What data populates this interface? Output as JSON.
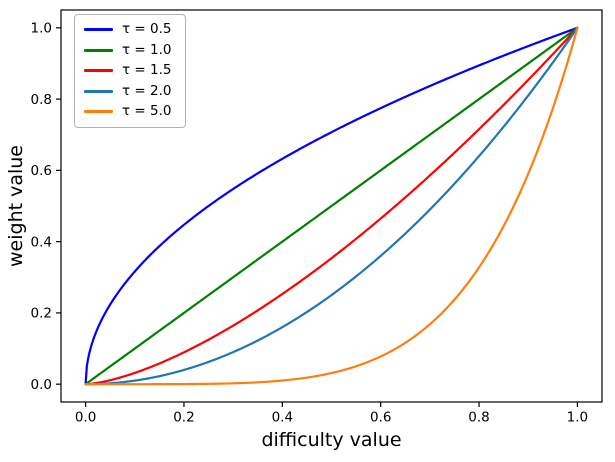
{
  "figure": {
    "background": "#ffffff",
    "axis_color": "#000000",
    "text_color": "#000000",
    "legend_border_color": "#b3b3b3"
  },
  "chart_data": {
    "type": "line",
    "title": "",
    "xlabel": "difficulty value",
    "ylabel": "weight value",
    "xlim": [
      0.0,
      1.0
    ],
    "ylim": [
      0.0,
      1.0
    ],
    "axes_margin": 0.05,
    "grid": false,
    "legend_position": "upper left",
    "curve_formula": "y = x^tau",
    "x_ticks": [
      0.0,
      0.2,
      0.4,
      0.6,
      0.8,
      1.0
    ],
    "x_tick_labels": [
      "0.0",
      "0.2",
      "0.4",
      "0.6",
      "0.8",
      "1.0"
    ],
    "y_ticks": [
      0.0,
      0.2,
      0.4,
      0.6,
      0.8,
      1.0
    ],
    "y_tick_labels": [
      "0.0",
      "0.2",
      "0.4",
      "0.6",
      "0.8",
      "1.0"
    ],
    "x_samples": [
      0,
      0.05,
      0.1,
      0.15,
      0.2,
      0.25,
      0.3,
      0.35,
      0.4,
      0.45,
      0.5,
      0.55,
      0.6,
      0.65,
      0.7,
      0.75,
      0.8,
      0.85,
      0.9,
      0.95,
      1
    ],
    "series": [
      {
        "label": "τ = 0.5",
        "tau": 0.5,
        "color": "#0000ff",
        "values": [
          0,
          0.2236,
          0.3162,
          0.3873,
          0.4472,
          0.5,
          0.5477,
          0.5916,
          0.6325,
          0.6708,
          0.7071,
          0.7416,
          0.7746,
          0.8062,
          0.8367,
          0.866,
          0.8944,
          0.922,
          0.9487,
          0.9747,
          1
        ]
      },
      {
        "label": "τ = 1.0",
        "tau": 1.0,
        "color": "#008000",
        "values": [
          0,
          0.05,
          0.1,
          0.15,
          0.2,
          0.25,
          0.3,
          0.35,
          0.4,
          0.45,
          0.5,
          0.55,
          0.6,
          0.65,
          0.7,
          0.75,
          0.8,
          0.85,
          0.9,
          0.95,
          1
        ]
      },
      {
        "label": "τ = 1.5",
        "tau": 1.5,
        "color": "#ff0000",
        "values": [
          0,
          0.0112,
          0.0316,
          0.0581,
          0.0894,
          0.125,
          0.1643,
          0.2071,
          0.253,
          0.3019,
          0.3536,
          0.4078,
          0.4648,
          0.5241,
          0.5857,
          0.6495,
          0.7155,
          0.7837,
          0.8538,
          0.9259,
          1
        ]
      },
      {
        "label": "τ = 2.0",
        "tau": 2.0,
        "color": "#1f77b4",
        "values": [
          0,
          0.0025,
          0.01,
          0.0225,
          0.04,
          0.0625,
          0.09,
          0.1225,
          0.16,
          0.2025,
          0.25,
          0.3025,
          0.36,
          0.4225,
          0.49,
          0.5625,
          0.64,
          0.7225,
          0.81,
          0.9025,
          1
        ]
      },
      {
        "label": "τ = 5.0",
        "tau": 5.0,
        "color": "#ff7f0e",
        "values": [
          0,
          0,
          0,
          0.0001,
          0.0003,
          0.001,
          0.0024,
          0.0053,
          0.0102,
          0.0185,
          0.0313,
          0.0503,
          0.0778,
          0.116,
          0.1681,
          0.2373,
          0.3277,
          0.4437,
          0.5905,
          0.7738,
          1
        ]
      }
    ]
  }
}
